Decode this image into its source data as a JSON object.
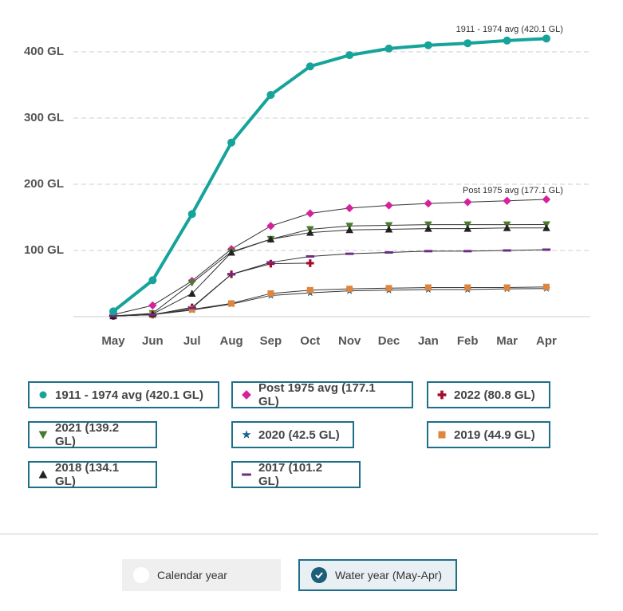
{
  "chart_data": {
    "type": "line",
    "categories": [
      "May",
      "Jun",
      "Jul",
      "Aug",
      "Sep",
      "Oct",
      "Nov",
      "Dec",
      "Jan",
      "Feb",
      "Mar",
      "Apr"
    ],
    "ylim": [
      0,
      440
    ],
    "yticks": [
      {
        "value": 100,
        "label": "100 GL"
      },
      {
        "value": 200,
        "label": "200 GL"
      },
      {
        "value": 300,
        "label": "300 GL"
      },
      {
        "value": 400,
        "label": "400 GL"
      }
    ],
    "grid": true,
    "series": [
      {
        "name": "1911 - 1974 avg (420.1 GL)",
        "color": "#16a39a",
        "marker": "circle",
        "values": [
          8,
          55,
          155,
          263,
          335,
          378,
          395,
          405,
          410,
          413,
          417,
          420.1
        ]
      },
      {
        "name": "Post 1975 avg (177.1 GL)",
        "color": "#d6219c",
        "marker": "diamond",
        "values": [
          3,
          17,
          54,
          102,
          137,
          156,
          164,
          168,
          171,
          173,
          175,
          177.1
        ]
      },
      {
        "name": "2022 (80.8 GL)",
        "color": "#a50d2c",
        "marker": "plus",
        "values": [
          1,
          3,
          14,
          64,
          80,
          80.8,
          null,
          null,
          null,
          null,
          null,
          null
        ]
      },
      {
        "name": "2021 (139.2 GL)",
        "color": "#4a7a2c",
        "marker": "triangle-down",
        "values": [
          1,
          5,
          51,
          98,
          117,
          132,
          137,
          138,
          139,
          139,
          139,
          139.2
        ]
      },
      {
        "name": "2020 (42.5 GL)",
        "color": "#1d5f8f",
        "marker": "star",
        "values": [
          1,
          3,
          10,
          19,
          32,
          36,
          39,
          40,
          41,
          41,
          42,
          42.5
        ]
      },
      {
        "name": "2019 (44.9 GL)",
        "color": "#e0853d",
        "marker": "square",
        "values": [
          1,
          3,
          11,
          20,
          35,
          40,
          42,
          43,
          44,
          44,
          44,
          44.9
        ]
      },
      {
        "name": "2018 (134.1 GL)",
        "color": "#222222",
        "marker": "triangle-up",
        "values": [
          1,
          4,
          35,
          97,
          117,
          127,
          131,
          132,
          133,
          133,
          134,
          134.1
        ]
      },
      {
        "name": "2017 (101.2 GL)",
        "color": "#6b2d86",
        "marker": "dash",
        "values": [
          1,
          3,
          13,
          64,
          82,
          91,
          95,
          97,
          99,
          99,
          100,
          101.2
        ]
      }
    ],
    "annotations": [
      "1911 - 1974 avg (420.1 GL)",
      "Post 1975 avg (177.1 GL)"
    ]
  },
  "controls": {
    "options": [
      "Calendar year",
      "Water year (May-Apr)"
    ],
    "selected": 1
  }
}
